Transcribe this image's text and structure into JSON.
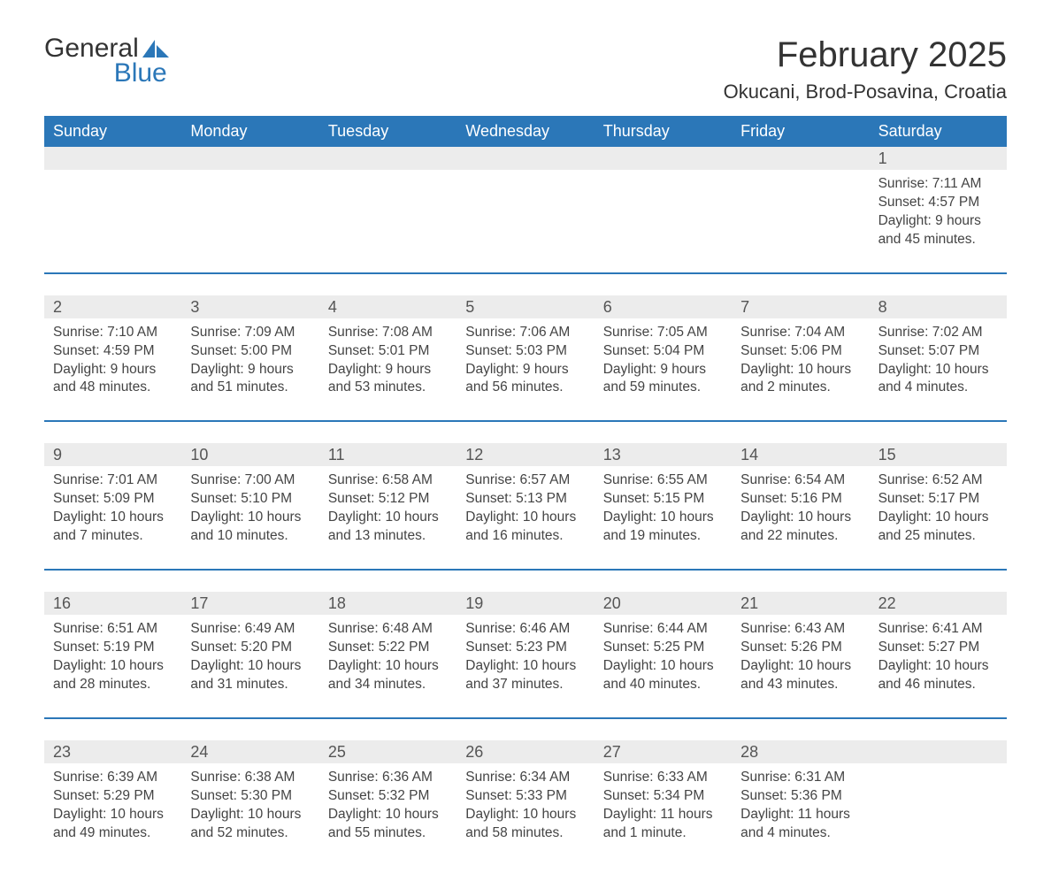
{
  "logo": {
    "word1": "General",
    "word2": "Blue",
    "accent_color": "#2b77b8"
  },
  "title": "February 2025",
  "location": "Okucani, Brod-Posavina, Croatia",
  "header_bg": "#2b77b8",
  "header_text_color": "#ffffff",
  "daynum_bg": "#ececec",
  "text_color": "#444444",
  "weekdays": [
    "Sunday",
    "Monday",
    "Tuesday",
    "Wednesday",
    "Thursday",
    "Friday",
    "Saturday"
  ],
  "weeks": [
    [
      null,
      null,
      null,
      null,
      null,
      null,
      {
        "n": "1",
        "sunrise": "7:11 AM",
        "sunset": "4:57 PM",
        "daylight": "9 hours and 45 minutes."
      }
    ],
    [
      {
        "n": "2",
        "sunrise": "7:10 AM",
        "sunset": "4:59 PM",
        "daylight": "9 hours and 48 minutes."
      },
      {
        "n": "3",
        "sunrise": "7:09 AM",
        "sunset": "5:00 PM",
        "daylight": "9 hours and 51 minutes."
      },
      {
        "n": "4",
        "sunrise": "7:08 AM",
        "sunset": "5:01 PM",
        "daylight": "9 hours and 53 minutes."
      },
      {
        "n": "5",
        "sunrise": "7:06 AM",
        "sunset": "5:03 PM",
        "daylight": "9 hours and 56 minutes."
      },
      {
        "n": "6",
        "sunrise": "7:05 AM",
        "sunset": "5:04 PM",
        "daylight": "9 hours and 59 minutes."
      },
      {
        "n": "7",
        "sunrise": "7:04 AM",
        "sunset": "5:06 PM",
        "daylight": "10 hours and 2 minutes."
      },
      {
        "n": "8",
        "sunrise": "7:02 AM",
        "sunset": "5:07 PM",
        "daylight": "10 hours and 4 minutes."
      }
    ],
    [
      {
        "n": "9",
        "sunrise": "7:01 AM",
        "sunset": "5:09 PM",
        "daylight": "10 hours and 7 minutes."
      },
      {
        "n": "10",
        "sunrise": "7:00 AM",
        "sunset": "5:10 PM",
        "daylight": "10 hours and 10 minutes."
      },
      {
        "n": "11",
        "sunrise": "6:58 AM",
        "sunset": "5:12 PM",
        "daylight": "10 hours and 13 minutes."
      },
      {
        "n": "12",
        "sunrise": "6:57 AM",
        "sunset": "5:13 PM",
        "daylight": "10 hours and 16 minutes."
      },
      {
        "n": "13",
        "sunrise": "6:55 AM",
        "sunset": "5:15 PM",
        "daylight": "10 hours and 19 minutes."
      },
      {
        "n": "14",
        "sunrise": "6:54 AM",
        "sunset": "5:16 PM",
        "daylight": "10 hours and 22 minutes."
      },
      {
        "n": "15",
        "sunrise": "6:52 AM",
        "sunset": "5:17 PM",
        "daylight": "10 hours and 25 minutes."
      }
    ],
    [
      {
        "n": "16",
        "sunrise": "6:51 AM",
        "sunset": "5:19 PM",
        "daylight": "10 hours and 28 minutes."
      },
      {
        "n": "17",
        "sunrise": "6:49 AM",
        "sunset": "5:20 PM",
        "daylight": "10 hours and 31 minutes."
      },
      {
        "n": "18",
        "sunrise": "6:48 AM",
        "sunset": "5:22 PM",
        "daylight": "10 hours and 34 minutes."
      },
      {
        "n": "19",
        "sunrise": "6:46 AM",
        "sunset": "5:23 PM",
        "daylight": "10 hours and 37 minutes."
      },
      {
        "n": "20",
        "sunrise": "6:44 AM",
        "sunset": "5:25 PM",
        "daylight": "10 hours and 40 minutes."
      },
      {
        "n": "21",
        "sunrise": "6:43 AM",
        "sunset": "5:26 PM",
        "daylight": "10 hours and 43 minutes."
      },
      {
        "n": "22",
        "sunrise": "6:41 AM",
        "sunset": "5:27 PM",
        "daylight": "10 hours and 46 minutes."
      }
    ],
    [
      {
        "n": "23",
        "sunrise": "6:39 AM",
        "sunset": "5:29 PM",
        "daylight": "10 hours and 49 minutes."
      },
      {
        "n": "24",
        "sunrise": "6:38 AM",
        "sunset": "5:30 PM",
        "daylight": "10 hours and 52 minutes."
      },
      {
        "n": "25",
        "sunrise": "6:36 AM",
        "sunset": "5:32 PM",
        "daylight": "10 hours and 55 minutes."
      },
      {
        "n": "26",
        "sunrise": "6:34 AM",
        "sunset": "5:33 PM",
        "daylight": "10 hours and 58 minutes."
      },
      {
        "n": "27",
        "sunrise": "6:33 AM",
        "sunset": "5:34 PM",
        "daylight": "11 hours and 1 minute."
      },
      {
        "n": "28",
        "sunrise": "6:31 AM",
        "sunset": "5:36 PM",
        "daylight": "11 hours and 4 minutes."
      },
      null
    ]
  ],
  "labels": {
    "sunrise": "Sunrise: ",
    "sunset": "Sunset: ",
    "daylight": "Daylight: "
  }
}
